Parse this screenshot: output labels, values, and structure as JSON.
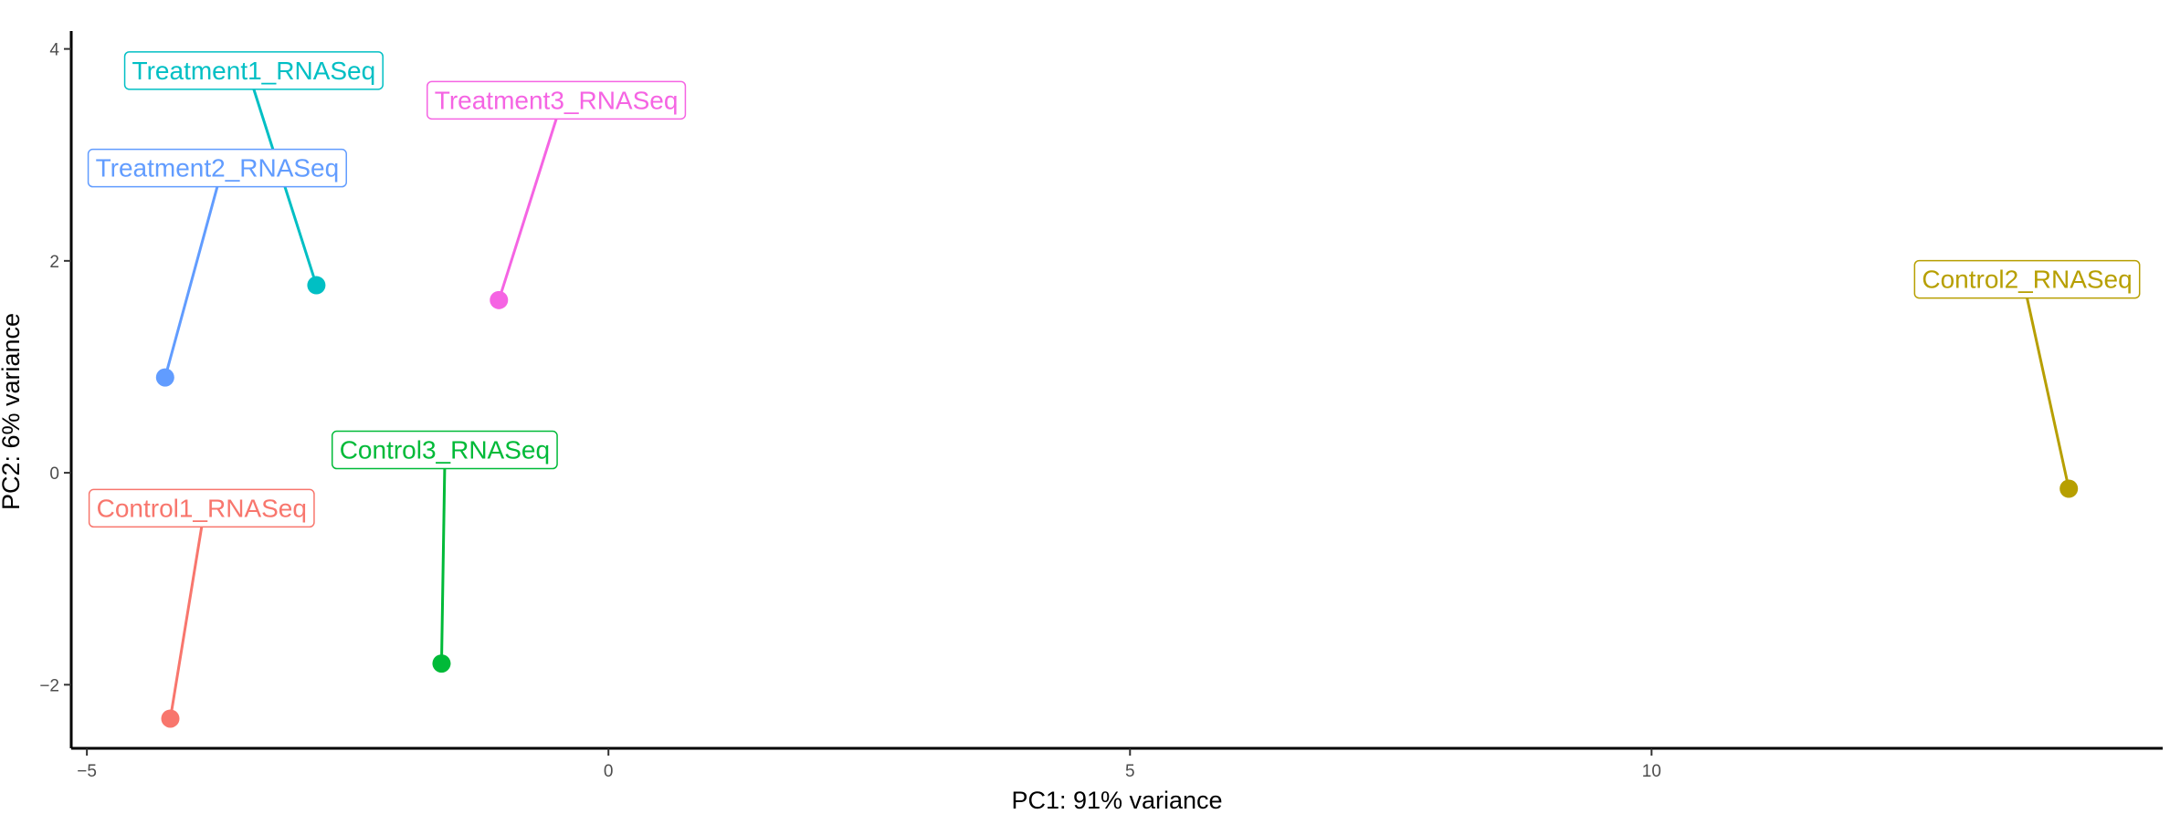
{
  "chart_data": {
    "type": "scatter",
    "xlabel": "PC1: 91% variance",
    "ylabel": "PC2: 6% variance",
    "xlim": [
      -5.15,
      14.9
    ],
    "ylim": [
      -2.6,
      4.1
    ],
    "x_ticks": [
      -5,
      0,
      5,
      10
    ],
    "y_ticks": [
      -2,
      0,
      2,
      4
    ],
    "x_tick_labels": [
      "−5",
      "0",
      "5",
      "10"
    ],
    "y_tick_labels": [
      "−2",
      "0",
      "2",
      "4"
    ],
    "grid": false,
    "legend": "none",
    "points": [
      {
        "label": "Control1_RNASeq",
        "x": -4.2,
        "y": -2.32,
        "color": "#F8766D",
        "label_x": -3.9,
        "label_y": -0.33
      },
      {
        "label": "Control2_RNASeq",
        "x": 14.0,
        "y": -0.15,
        "color": "#B79F00",
        "label_x": 13.6,
        "label_y": 1.83
      },
      {
        "label": "Control3_RNASeq",
        "x": -1.6,
        "y": -1.8,
        "color": "#00BA38",
        "label_x": -1.57,
        "label_y": 0.22
      },
      {
        "label": "Treatment1_RNASeq",
        "x": -2.8,
        "y": 1.77,
        "color": "#00BFC4",
        "label_x": -3.4,
        "label_y": 3.8
      },
      {
        "label": "Treatment2_RNASeq",
        "x": -4.25,
        "y": 0.9,
        "color": "#619CFF",
        "label_x": -3.75,
        "label_y": 2.88
      },
      {
        "label": "Treatment3_RNASeq",
        "x": -1.05,
        "y": 1.63,
        "color": "#F564E3",
        "label_x": -0.5,
        "label_y": 3.52
      }
    ]
  }
}
